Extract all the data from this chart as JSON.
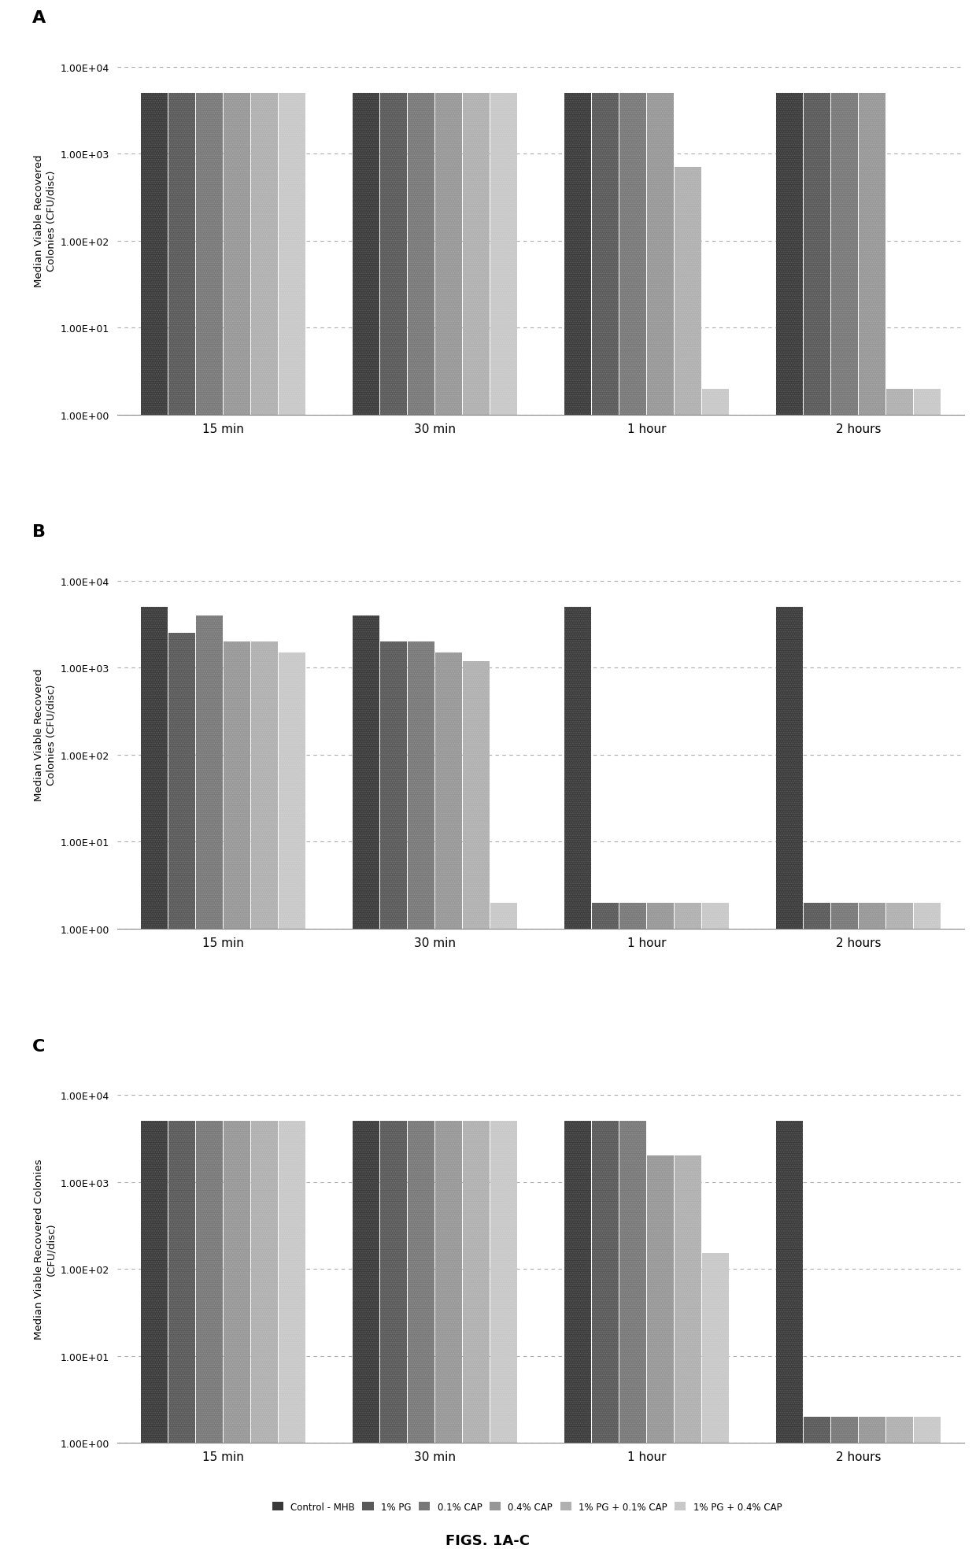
{
  "title": "FIGS. 1A-C",
  "subplot_labels": [
    "A",
    "B",
    "C"
  ],
  "time_labels": [
    "15 min",
    "30 min",
    "1 hour",
    "2 hours"
  ],
  "series_labels": [
    "Control - MHB",
    "1% PG",
    "0.1% CAP",
    "0.4% CAP",
    "1% PG + 0.1% CAP",
    "1% PG + 0.4% CAP"
  ],
  "colors": [
    "#4d4d4d",
    "#666666",
    "#808080",
    "#999999",
    "#b3b3b3",
    "#cccccc"
  ],
  "ylabel_A": "Median Viable Recovered\nColonies (CFU/disc)",
  "ylabel_B": "Median Viable Recovered\nColonies (CFU/disc)",
  "ylabel_C": "Median Viable Recovered Colonies\n(CFU/disc)",
  "yticks": [
    1.0,
    10.0,
    100.0,
    1000.0,
    10000.0
  ],
  "yticklabels": [
    "1.00E+00",
    "1.00E+01",
    "1.00E+02",
    "1.00E+03",
    "1.00E+04"
  ],
  "chart_A": {
    "values": [
      [
        5000,
        5000,
        5000,
        5000,
        5000,
        5000
      ],
      [
        5000,
        5000,
        5000,
        5000,
        5000,
        5000
      ],
      [
        5000,
        5000,
        5000,
        5000,
        700,
        1
      ],
      [
        5000,
        5000,
        5000,
        5000,
        1,
        1
      ]
    ]
  },
  "chart_B": {
    "values": [
      [
        5000,
        2500,
        4000,
        2000,
        2000,
        1500
      ],
      [
        4000,
        2000,
        2000,
        1500,
        1200,
        1
      ],
      [
        5000,
        1,
        1,
        1,
        1,
        1
      ],
      [
        5000,
        1,
        1,
        1,
        1,
        1
      ]
    ]
  },
  "chart_C": {
    "values": [
      [
        5000,
        5000,
        5000,
        5000,
        5000,
        5000
      ],
      [
        5000,
        5000,
        5000,
        5000,
        5000,
        5000
      ],
      [
        5000,
        5000,
        5000,
        2000,
        2000,
        150
      ],
      [
        5000,
        1,
        1,
        1,
        1,
        1
      ]
    ]
  }
}
